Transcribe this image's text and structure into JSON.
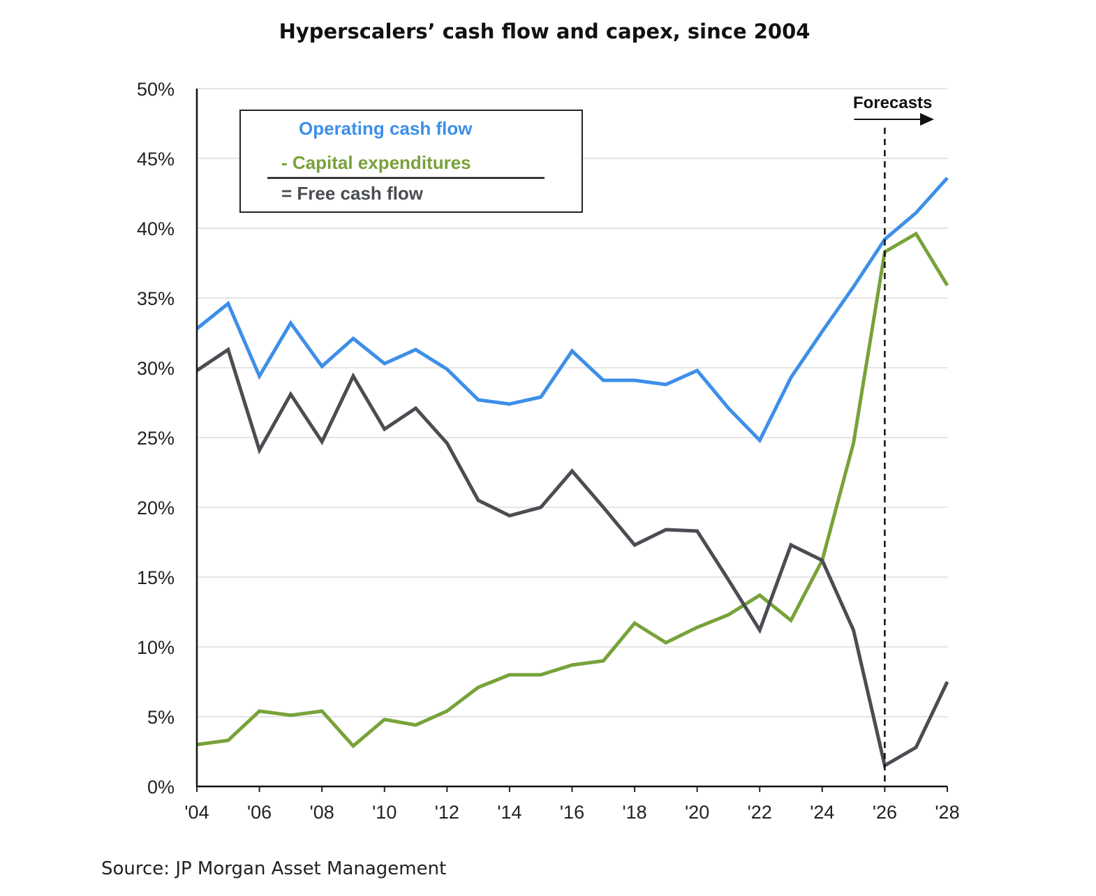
{
  "chart_data": {
    "type": "line",
    "title": "Hyperscalers’ cash flow and capex, since 2004",
    "source": "Source: JP Morgan Asset Management",
    "x": [
      2004,
      2005,
      2006,
      2007,
      2008,
      2009,
      2010,
      2011,
      2012,
      2013,
      2014,
      2015,
      2016,
      2017,
      2018,
      2019,
      2020,
      2021,
      2022,
      2023,
      2024,
      2025,
      2026,
      2027,
      2028
    ],
    "x_tick_labels": [
      "'04",
      "'06",
      "'08",
      "'10",
      "'12",
      "'14",
      "'16",
      "'18",
      "'20",
      "'22",
      "'24",
      "'26",
      "'28"
    ],
    "x_tick_values": [
      2004,
      2006,
      2008,
      2010,
      2012,
      2014,
      2016,
      2018,
      2020,
      2022,
      2024,
      2026,
      2028
    ],
    "y_tick_labels": [
      "0%",
      "5%",
      "10%",
      "15%",
      "20%",
      "25%",
      "30%",
      "35%",
      "40%",
      "45%",
      "50%"
    ],
    "y_tick_values": [
      0,
      5,
      10,
      15,
      20,
      25,
      30,
      35,
      40,
      45,
      50
    ],
    "xlim": [
      2004,
      2028
    ],
    "ylim": [
      0,
      50
    ],
    "grid": "horizontal",
    "series": [
      {
        "name": "Operating cash flow",
        "color": "#3d8fe8",
        "values": [
          32.8,
          34.6,
          29.4,
          33.2,
          30.1,
          32.1,
          30.3,
          31.3,
          29.9,
          27.7,
          27.4,
          27.9,
          31.2,
          29.1,
          29.1,
          28.8,
          29.8,
          27.1,
          24.8,
          29.3,
          32.6,
          35.8,
          39.2,
          41.1,
          43.6
        ]
      },
      {
        "name": "Capital expenditures",
        "color": "#78a23a",
        "values": [
          3.0,
          3.3,
          5.4,
          5.1,
          5.4,
          2.9,
          4.8,
          4.4,
          5.4,
          7.1,
          8.0,
          8.0,
          8.7,
          9.0,
          11.7,
          10.3,
          11.4,
          12.3,
          13.7,
          11.9,
          16.2,
          24.6,
          38.3,
          39.6,
          35.9
        ]
      },
      {
        "name": "Free cash flow",
        "color": "#4a4d52",
        "values": [
          29.8,
          31.3,
          24.1,
          28.1,
          24.7,
          29.4,
          25.6,
          27.1,
          24.6,
          20.5,
          19.4,
          20.0,
          22.6,
          20.0,
          17.3,
          18.4,
          18.3,
          14.8,
          11.2,
          17.3,
          16.2,
          11.2,
          1.5,
          2.8,
          7.5
        ]
      }
    ],
    "legend": {
      "placement": "top-left",
      "items": [
        "Operating cash flow",
        "- Capital expenditures",
        "= Free cash flow"
      ]
    },
    "annotations": [
      {
        "text": "Forecasts",
        "x": 2026
      }
    ]
  }
}
